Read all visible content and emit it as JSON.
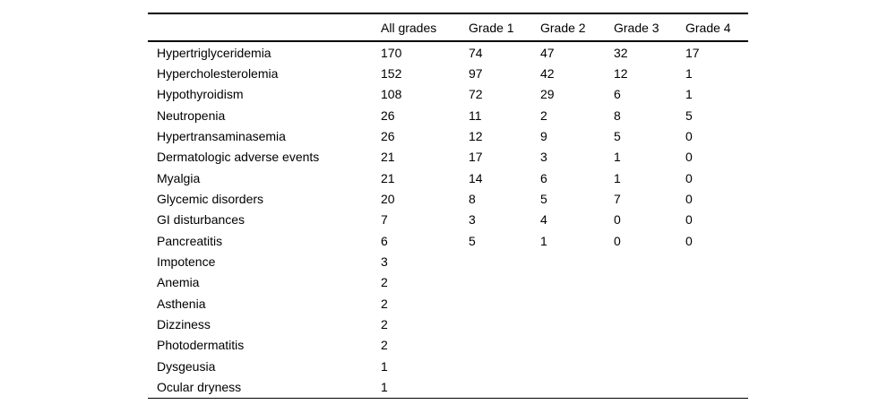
{
  "table": {
    "columns": [
      "",
      "All grades",
      "Grade 1",
      "Grade 2",
      "Grade 3",
      "Grade 4"
    ],
    "rows": [
      {
        "label": "Hypertriglyceridemia",
        "values": [
          "170",
          "74",
          "47",
          "32",
          "17"
        ]
      },
      {
        "label": "Hypercholesterolemia",
        "values": [
          "152",
          "97",
          "42",
          "12",
          "1"
        ]
      },
      {
        "label": "Hypothyroidism",
        "values": [
          "108",
          "72",
          "29",
          "6",
          "1"
        ]
      },
      {
        "label": "Neutropenia",
        "values": [
          "26",
          "11",
          "2",
          "8",
          "5"
        ]
      },
      {
        "label": "Hypertransaminasemia",
        "values": [
          "26",
          "12",
          "9",
          "5",
          "0"
        ]
      },
      {
        "label": "Dermatologic adverse events",
        "values": [
          "21",
          "17",
          "3",
          "1",
          "0"
        ]
      },
      {
        "label": "Myalgia",
        "values": [
          "21",
          "14",
          "6",
          "1",
          "0"
        ]
      },
      {
        "label": "Glycemic disorders",
        "values": [
          "20",
          "8",
          "5",
          "7",
          "0"
        ]
      },
      {
        "label": "GI disturbances",
        "values": [
          "7",
          "3",
          "4",
          "0",
          "0"
        ]
      },
      {
        "label": "Pancreatitis",
        "values": [
          "6",
          "5",
          "1",
          "0",
          "0"
        ]
      },
      {
        "label": "Impotence",
        "values": [
          "3",
          "",
          "",
          "",
          ""
        ]
      },
      {
        "label": "Anemia",
        "values": [
          "2",
          "",
          "",
          "",
          ""
        ]
      },
      {
        "label": "Asthenia",
        "values": [
          "2",
          "",
          "",
          "",
          ""
        ]
      },
      {
        "label": "Dizziness",
        "values": [
          "2",
          "",
          "",
          "",
          ""
        ]
      },
      {
        "label": "Photodermatitis",
        "values": [
          "2",
          "",
          "",
          "",
          ""
        ]
      },
      {
        "label": "Dysgeusia",
        "values": [
          "1",
          "",
          "",
          "",
          ""
        ]
      },
      {
        "label": "Ocular dryness",
        "values": [
          "1",
          "",
          "",
          "",
          ""
        ]
      }
    ]
  }
}
